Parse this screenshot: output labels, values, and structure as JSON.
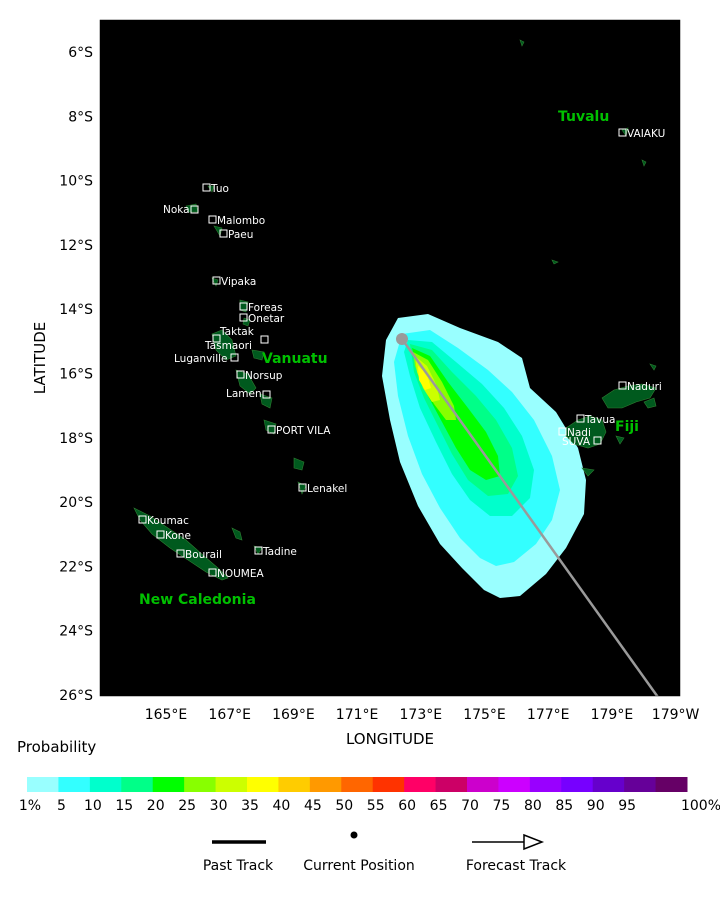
{
  "map": {
    "xlabel": "LONGITUDE",
    "ylabel": "LATITUDE",
    "lon_ticks": [
      "165°E",
      "167°E",
      "169°E",
      "171°E",
      "173°E",
      "175°E",
      "177°E",
      "179°E",
      "179°W"
    ],
    "lat_ticks": [
      "6°S",
      "8°S",
      "10°S",
      "12°S",
      "14°S",
      "16°S",
      "18°S",
      "20°S",
      "22°S",
      "24°S",
      "26°S"
    ],
    "colors": {
      "ocean": "#000066",
      "land": "#005a1e",
      "frame": "#ffffff",
      "track": "#9a9a9a"
    }
  },
  "countries": [
    {
      "key": "tuvalu",
      "label": "Tuvalu"
    },
    {
      "key": "vanuatu",
      "label": "Vanuatu"
    },
    {
      "key": "fiji",
      "label": "Fiji"
    },
    {
      "key": "new_caledonia",
      "label": "New Caledonia"
    }
  ],
  "places": [
    {
      "key": "vaiaku",
      "label": "VAIAKU"
    },
    {
      "key": "tuo",
      "label": "Tuo"
    },
    {
      "key": "noka",
      "label": "Noka"
    },
    {
      "key": "malombo",
      "label": "Malombo"
    },
    {
      "key": "paeu",
      "label": "Paeu"
    },
    {
      "key": "vipaka",
      "label": "Vipaka"
    },
    {
      "key": "foreas",
      "label": "Foreas"
    },
    {
      "key": "onetar",
      "label": "Onetar"
    },
    {
      "key": "taktak",
      "label": "Taktak"
    },
    {
      "key": "tasmaori",
      "label": "Tasmaori"
    },
    {
      "key": "luganville",
      "label": "Luganville"
    },
    {
      "key": "norsup",
      "label": "Norsup"
    },
    {
      "key": "lamen",
      "label": "Lamen"
    },
    {
      "key": "port_vila",
      "label": "PORT VILA"
    },
    {
      "key": "lenakel",
      "label": "Lenakel"
    },
    {
      "key": "koumac",
      "label": "Koumac"
    },
    {
      "key": "kone",
      "label": "Kone"
    },
    {
      "key": "bourail",
      "label": "Bourail"
    },
    {
      "key": "tadine",
      "label": "Tadine"
    },
    {
      "key": "noumea",
      "label": "NOUMEA"
    },
    {
      "key": "naduri",
      "label": "Naduri"
    },
    {
      "key": "tavua",
      "label": "Tavua"
    },
    {
      "key": "nadi",
      "label": "Nadi"
    },
    {
      "key": "suva",
      "label": "SUVA"
    }
  ],
  "probability_scale": {
    "title": "Probability",
    "labels": [
      "1%",
      "5",
      "10",
      "15",
      "20",
      "25",
      "30",
      "35",
      "40",
      "45",
      "50",
      "55",
      "60",
      "65",
      "70",
      "75",
      "80",
      "85",
      "90",
      "95",
      "100%"
    ],
    "colors": [
      "#99ffff",
      "#33ffff",
      "#00ffcc",
      "#00ff88",
      "#00ff00",
      "#88ff00",
      "#ccff00",
      "#ffff00",
      "#ffcc00",
      "#ff9900",
      "#ff6600",
      "#ff3300",
      "#ff0066",
      "#cc0066",
      "#cc00cc",
      "#cc00ff",
      "#9900ff",
      "#7700ff",
      "#6600cc",
      "#660099",
      "#660066"
    ]
  },
  "legend": {
    "past_track": "Past Track",
    "current_position": "Current Position",
    "forecast_track": "Forecast Track"
  }
}
